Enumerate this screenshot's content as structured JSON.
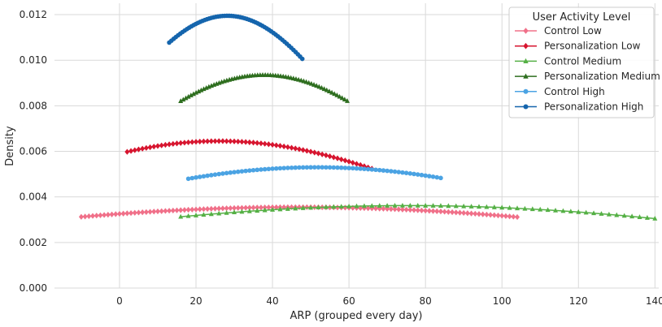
{
  "chart_data": {
    "type": "line",
    "xlabel": "ARP (grouped every day)",
    "ylabel": "Density",
    "xlim": [
      -17,
      141
    ],
    "ylim": [
      0,
      0.0125
    ],
    "x_ticks": [
      0,
      20,
      40,
      60,
      80,
      100,
      120,
      140
    ],
    "y_ticks": [
      0.0,
      0.002,
      0.004,
      0.006,
      0.008,
      0.01,
      0.012
    ],
    "x_tick_labels": [
      "0",
      "20",
      "40",
      "60",
      "80",
      "100",
      "120",
      "140"
    ],
    "y_tick_labels": [
      "0.000",
      "0.002",
      "0.004",
      "0.006",
      "0.008",
      "0.010",
      "0.012"
    ],
    "grid": true,
    "legend": {
      "title": "User Activity Level",
      "placement": "top-right",
      "entries": [
        "Control Low",
        "Personalization Low",
        "Control Medium",
        "Personalization Medium",
        "Control High",
        "Personalization High"
      ]
    },
    "series": [
      {
        "name": "Control Low",
        "color": "#f07089",
        "marker": "diamond",
        "peak_x": 46.7,
        "peak_density": 0.00355,
        "x_start": -10.0,
        "x_end": 104.0,
        "x_step": 1.0
      },
      {
        "name": "Personalization Low",
        "color": "#d7152f",
        "marker": "diamond",
        "peak_x": 26.1,
        "peak_density": 0.00645,
        "x_start": 2.0,
        "x_end": 66.0,
        "x_step": 1.0
      },
      {
        "name": "Control Medium",
        "color": "#55b045",
        "marker": "triangle",
        "peak_x": 75.5,
        "peak_density": 0.00362,
        "x_start": 16.0,
        "x_end": 140.0,
        "x_step": 2.0
      },
      {
        "name": "Personalization Medium",
        "color": "#2e6e1f",
        "marker": "triangle",
        "peak_x": 37.8,
        "peak_density": 0.00935,
        "x_start": 16.0,
        "x_end": 60.0,
        "x_step": 0.67
      },
      {
        "name": "Control High",
        "color": "#4ba3e3",
        "marker": "circle",
        "peak_x": 51.6,
        "peak_density": 0.0053,
        "x_start": 18.0,
        "x_end": 84.0,
        "x_step": 1.0
      },
      {
        "name": "Personalization High",
        "color": "#1565ad",
        "marker": "circle",
        "peak_x": 28.2,
        "peak_density": 0.01195,
        "x_start": 13.0,
        "x_end": 48.0,
        "x_step": 0.58
      }
    ]
  }
}
